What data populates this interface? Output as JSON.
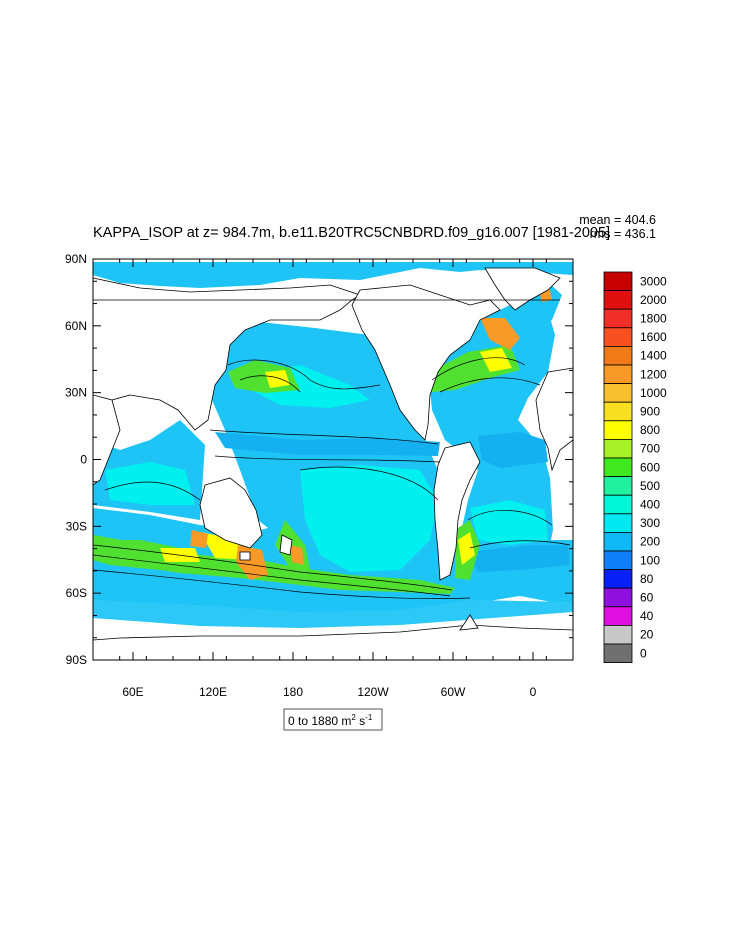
{
  "title": "KAPPA_ISOP at z= 984.7m, b.e11.B20TRC5CNBDRD.f09_g16.007 [1981-2005]",
  "stats": {
    "mean": "mean = 404.6",
    "rms": "rms = 436.1"
  },
  "axes": {
    "y_ticks": [
      "90N",
      "60N",
      "30N",
      "0",
      "30S",
      "60S",
      "90S"
    ],
    "x_ticks": [
      "60E",
      "120E",
      "180",
      "120W",
      "60W",
      "0"
    ]
  },
  "range_label": {
    "prefix": "0 to 1880 m",
    "sup1": "2",
    "mid": " s",
    "sup2": "-1"
  },
  "colorbar": {
    "labels": [
      "3000",
      "2000",
      "1800",
      "1600",
      "1400",
      "1200",
      "1000",
      "900",
      "800",
      "700",
      "600",
      "500",
      "400",
      "300",
      "200",
      "100",
      "80",
      "60",
      "40",
      "20",
      "0"
    ],
    "colors": [
      "#c80000",
      "#e01010",
      "#f03028",
      "#f85020",
      "#f07a18",
      "#f89a28",
      "#f8c030",
      "#f8e020",
      "#ffff00",
      "#a8f028",
      "#40e820",
      "#20f0a0",
      "#00f8d8",
      "#00e8f0",
      "#10b8f8",
      "#1080f8",
      "#0820f8",
      "#9010e0",
      "#e010e0",
      "#c8c8c8",
      "#707070"
    ]
  }
}
